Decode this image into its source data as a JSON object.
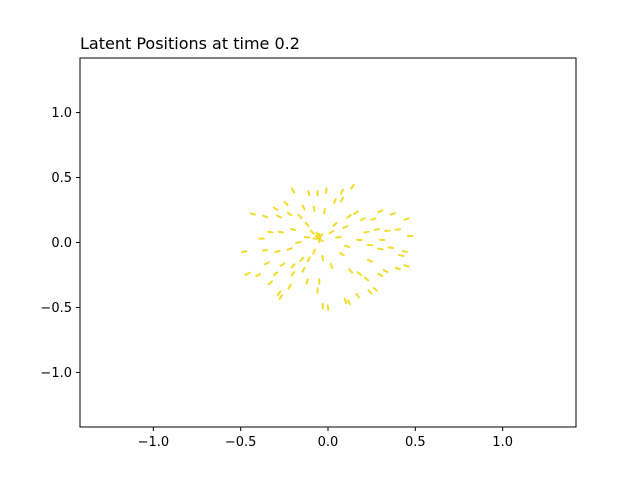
{
  "chart_data": {
    "type": "scatter",
    "title": "Latent Positions at time 0.2",
    "xlabel": "",
    "ylabel": "",
    "xlim": [
      -1.42,
      1.42
    ],
    "ylim": [
      -1.42,
      1.42
    ],
    "xticks": [
      -1.0,
      -0.5,
      0.0,
      0.5,
      1.0
    ],
    "xtick_labels": [
      "−1.0",
      "−0.5",
      "0.0",
      "0.5",
      "1.0"
    ],
    "yticks": [
      -1.0,
      -0.5,
      0.0,
      0.5,
      1.0
    ],
    "ytick_labels": [
      "−1.0",
      "−0.5",
      "0.0",
      "0.5",
      "1.0"
    ],
    "grid": false,
    "marker": "short arrow",
    "color": "#f2dc2a",
    "series": [
      {
        "points": [
          [
            -0.43,
            0.22
          ],
          [
            -0.38,
            0.03
          ],
          [
            -0.48,
            -0.07
          ],
          [
            -0.46,
            -0.24
          ],
          [
            -0.4,
            -0.25
          ],
          [
            -0.35,
            -0.16
          ],
          [
            -0.33,
            -0.31
          ],
          [
            -0.28,
            -0.39
          ],
          [
            -0.27,
            -0.42
          ],
          [
            -0.22,
            -0.34
          ],
          [
            -0.26,
            -0.17
          ],
          [
            -0.2,
            -0.18
          ],
          [
            -0.14,
            -0.21
          ],
          [
            -0.12,
            -0.3
          ],
          [
            -0.06,
            -0.37
          ],
          [
            -0.03,
            -0.49
          ],
          [
            0.0,
            -0.5
          ],
          [
            0.1,
            -0.45
          ],
          [
            0.12,
            -0.46
          ],
          [
            0.17,
            -0.41
          ],
          [
            0.24,
            -0.38
          ],
          [
            0.27,
            -0.36
          ],
          [
            0.22,
            -0.28
          ],
          [
            0.18,
            -0.24
          ],
          [
            0.13,
            -0.22
          ],
          [
            0.3,
            -0.25
          ],
          [
            0.33,
            -0.22
          ],
          [
            0.4,
            -0.2
          ],
          [
            0.45,
            -0.18
          ],
          [
            0.42,
            -0.1
          ],
          [
            0.44,
            -0.07
          ],
          [
            0.36,
            -0.04
          ],
          [
            0.3,
            -0.05
          ],
          [
            0.24,
            -0.02
          ],
          [
            0.18,
            0.02
          ],
          [
            0.22,
            0.08
          ],
          [
            0.28,
            0.1
          ],
          [
            0.34,
            0.09
          ],
          [
            0.4,
            0.1
          ],
          [
            0.47,
            0.05
          ],
          [
            0.45,
            0.18
          ],
          [
            0.37,
            0.22
          ],
          [
            0.3,
            0.24
          ],
          [
            0.26,
            0.18
          ],
          [
            0.2,
            0.18
          ],
          [
            0.16,
            0.23
          ],
          [
            0.12,
            0.2
          ],
          [
            0.08,
            0.33
          ],
          [
            0.04,
            0.32
          ],
          [
            0.14,
            0.43
          ],
          [
            0.08,
            0.39
          ],
          [
            -0.01,
            0.4
          ],
          [
            -0.06,
            0.38
          ],
          [
            -0.11,
            0.38
          ],
          [
            -0.2,
            0.4
          ],
          [
            -0.24,
            0.3
          ],
          [
            -0.3,
            0.26
          ],
          [
            -0.36,
            0.2
          ],
          [
            -0.28,
            0.2
          ],
          [
            -0.22,
            0.22
          ],
          [
            -0.16,
            0.2
          ],
          [
            -0.12,
            0.14
          ],
          [
            -0.2,
            0.1
          ],
          [
            -0.27,
            0.08
          ],
          [
            -0.33,
            0.08
          ],
          [
            -0.36,
            -0.06
          ],
          [
            -0.29,
            -0.07
          ],
          [
            -0.22,
            -0.05
          ],
          [
            -0.17,
            0.0
          ],
          [
            -0.12,
            0.04
          ],
          [
            -0.09,
            0.08
          ],
          [
            -0.08,
            -0.07
          ],
          [
            -0.11,
            -0.13
          ],
          [
            -0.15,
            -0.13
          ],
          [
            -0.2,
            -0.24
          ],
          [
            -0.03,
            -0.12
          ],
          [
            0.02,
            -0.18
          ],
          [
            0.08,
            -0.09
          ],
          [
            0.11,
            -0.03
          ],
          [
            0.06,
            0.04
          ],
          [
            0.02,
            0.08
          ],
          [
            0.04,
            0.14
          ],
          [
            0.1,
            0.12
          ],
          [
            -0.02,
            0.24
          ],
          [
            -0.08,
            0.26
          ],
          [
            -0.14,
            0.27
          ],
          [
            -0.3,
            -0.24
          ],
          [
            -0.05,
            -0.3
          ],
          [
            0.24,
            -0.14
          ],
          [
            0.31,
            0.02
          ],
          [
            -0.06,
            0.04
          ],
          [
            -0.05,
            0.03
          ],
          [
            -0.04,
            0.05
          ],
          [
            -0.06,
            0.06
          ],
          [
            -0.05,
            0.02
          ],
          [
            -0.07,
            0.03
          ],
          [
            -0.04,
            0.02
          ],
          [
            -0.05,
            0.05
          ]
        ]
      }
    ]
  }
}
